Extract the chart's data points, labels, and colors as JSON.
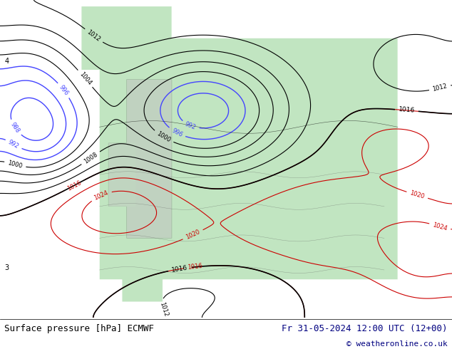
{
  "title_left": "Surface pressure [hPa] ECMWF",
  "title_right": "Fr 31-05-2024 12:00 UTC (12+00)",
  "copyright": "© weatheronline.co.uk",
  "bg_color": "#ffffff",
  "map_bg": "#f0f0f0",
  "land_color": "#c8e6c8",
  "ocean_color": "#ffffff",
  "contour_interval": 4,
  "pressure_min": 984,
  "pressure_max": 1044,
  "footer_bg": "#ffffff",
  "footer_text_color": "#000080",
  "left_label_color": "#000000",
  "right_label_color": "#000080",
  "copyright_color": "#000080"
}
